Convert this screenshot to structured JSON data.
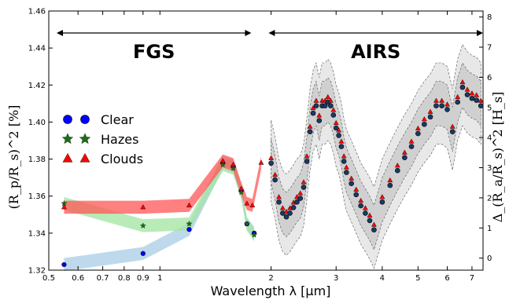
{
  "chart_data": {
    "type": "scatter",
    "xlabel": "Wavelength λ [μm]",
    "ylabel": "(R_p/R_s)^2 [%]",
    "y2label": "Δ_(R_a/R_s)^2 [H_s]",
    "x_scale": "log",
    "xlim": [
      0.5,
      7.5
    ],
    "ylim": [
      1.32,
      1.46
    ],
    "y2lim": [
      -0.4,
      8.2
    ],
    "x_ticks": [
      0.5,
      0.6,
      0.7,
      0.8,
      0.9,
      1,
      2,
      3,
      4,
      5,
      6,
      7
    ],
    "x_tick_labels": [
      "0.5",
      "0.6",
      "0.7",
      "0.8",
      "0.9",
      "1",
      "2",
      "3",
      "4",
      "5",
      "6",
      "7"
    ],
    "y_ticks": [
      1.32,
      1.34,
      1.36,
      1.38,
      1.4,
      1.42,
      1.44,
      1.46
    ],
    "y_tick_labels": [
      "1.32",
      "1.34",
      "1.36",
      "1.38",
      "1.40",
      "1.42",
      "1.44",
      "1.46"
    ],
    "y2_ticks": [
      0,
      1,
      2,
      3,
      4,
      5,
      6,
      7,
      8
    ],
    "y2_tick_labels": [
      "0",
      "1",
      "2",
      "3",
      "4",
      "5",
      "6",
      "7",
      "8"
    ],
    "regions": [
      {
        "label": "FGS",
        "x_range": [
          0.5,
          1.95
        ]
      },
      {
        "label": "AIRS",
        "x_range": [
          1.95,
          7.5
        ]
      }
    ],
    "legend_position": "center-left",
    "series": [
      {
        "name": "Clear",
        "marker": "circle",
        "color": "#0000ff",
        "band_color": "#a8cce4",
        "x": [
          0.55,
          0.9,
          1.2,
          1.48,
          1.58,
          1.66,
          1.72,
          1.8
        ],
        "y": [
          1.323,
          1.329,
          1.342,
          1.378,
          1.376,
          1.363,
          1.345,
          1.34
        ]
      },
      {
        "name": "Hazes",
        "marker": "star",
        "color": "#1e6b1e",
        "band_color": "#a2e4a2",
        "x": [
          0.55,
          0.9,
          1.2,
          1.48,
          1.58,
          1.66,
          1.72,
          1.8
        ],
        "y": [
          1.356,
          1.344,
          1.345,
          1.377,
          1.375,
          1.362,
          1.345,
          1.339
        ]
      },
      {
        "name": "Clouds",
        "marker": "triangle",
        "color": "#ff0000",
        "band_color": "#ff5555",
        "x": [
          0.55,
          0.9,
          1.2,
          1.48,
          1.58,
          1.66,
          1.72,
          1.78,
          1.88
        ],
        "y": [
          1.354,
          1.354,
          1.355,
          1.379,
          1.377,
          1.364,
          1.356,
          1.355,
          1.378
        ]
      }
    ],
    "airs_spectrum": {
      "x": [
        2.0,
        2.05,
        2.1,
        2.15,
        2.2,
        2.25,
        2.3,
        2.35,
        2.4,
        2.45,
        2.5,
        2.55,
        2.6,
        2.65,
        2.7,
        2.75,
        2.8,
        2.85,
        2.9,
        2.95,
        3.0,
        3.05,
        3.1,
        3.15,
        3.2,
        3.3,
        3.4,
        3.5,
        3.6,
        3.7,
        3.8,
        4.0,
        4.2,
        4.4,
        4.6,
        4.8,
        5.0,
        5.2,
        5.4,
        5.6,
        5.8,
        6.0,
        6.2,
        6.4,
        6.6,
        6.8,
        7.0,
        7.2,
        7.4
      ],
      "y": [
        1.379,
        1.37,
        1.358,
        1.352,
        1.35,
        1.352,
        1.355,
        1.358,
        1.36,
        1.366,
        1.38,
        1.396,
        1.406,
        1.41,
        1.402,
        1.41,
        1.41,
        1.412,
        1.41,
        1.405,
        1.398,
        1.394,
        1.388,
        1.38,
        1.374,
        1.368,
        1.362,
        1.356,
        1.352,
        1.348,
        1.343,
        1.358,
        1.367,
        1.375,
        1.382,
        1.388,
        1.395,
        1.4,
        1.404,
        1.41,
        1.41,
        1.408,
        1.396,
        1.412,
        1.42,
        1.416,
        1.414,
        1.413,
        1.41
      ]
    },
    "legend_markers": {
      "circle": "●",
      "star": "★",
      "triangle": "▲"
    },
    "legend": [
      "Clear",
      "Hazes",
      "Clouds"
    ]
  }
}
